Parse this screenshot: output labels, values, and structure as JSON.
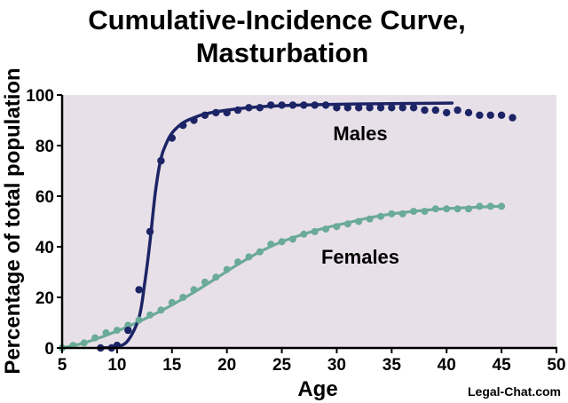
{
  "chart_data": {
    "type": "scatter",
    "title_lines": [
      "Cumulative-Incidence Curve,",
      "Masturbation"
    ],
    "xlabel": "Age",
    "ylabel": "Percentage of total population",
    "xlim": [
      5,
      50
    ],
    "ylim": [
      0,
      100
    ],
    "x_ticks": [
      5,
      10,
      15,
      20,
      25,
      30,
      35,
      40,
      45,
      50
    ],
    "y_ticks": [
      0,
      20,
      40,
      60,
      80,
      100
    ],
    "grid": false,
    "plot_background": "#e8e0e8",
    "series": [
      {
        "name": "Males",
        "color": "#1c2466",
        "points": [
          [
            8.5,
            0
          ],
          [
            9.5,
            0
          ],
          [
            10,
            1
          ],
          [
            11,
            7
          ],
          [
            12,
            23
          ],
          [
            13,
            46
          ],
          [
            14,
            74
          ],
          [
            15,
            83
          ],
          [
            16,
            88
          ],
          [
            17,
            90
          ],
          [
            18,
            92
          ],
          [
            19,
            93
          ],
          [
            20,
            93
          ],
          [
            21,
            94
          ],
          [
            22,
            95
          ],
          [
            23,
            95
          ],
          [
            24,
            96
          ],
          [
            25,
            96
          ],
          [
            26,
            96
          ],
          [
            27,
            96
          ],
          [
            28,
            96
          ],
          [
            29,
            96
          ],
          [
            30,
            95
          ],
          [
            31,
            95
          ],
          [
            32,
            95
          ],
          [
            33,
            95
          ],
          [
            34,
            95
          ],
          [
            35,
            95
          ],
          [
            36,
            95
          ],
          [
            37,
            95
          ],
          [
            38,
            94
          ],
          [
            39,
            94
          ],
          [
            40,
            93
          ],
          [
            41,
            94
          ],
          [
            42,
            93
          ],
          [
            43,
            92
          ],
          [
            44,
            92
          ],
          [
            45,
            92
          ],
          [
            46,
            91
          ]
        ],
        "fit": [
          [
            8.5,
            0
          ],
          [
            10,
            0.5
          ],
          [
            11,
            3
          ],
          [
            12,
            12
          ],
          [
            12.5,
            25
          ],
          [
            13,
            42
          ],
          [
            13.5,
            62
          ],
          [
            14,
            75
          ],
          [
            14.5,
            81
          ],
          [
            15,
            85
          ],
          [
            16,
            89
          ],
          [
            17,
            91
          ],
          [
            18,
            92.5
          ],
          [
            20,
            94
          ],
          [
            22,
            95
          ],
          [
            25,
            95.8
          ],
          [
            30,
            96.3
          ],
          [
            35,
            96.6
          ],
          [
            40.5,
            96.8
          ]
        ]
      },
      {
        "name": "Females",
        "color": "#6aaa98",
        "points": [
          [
            5,
            0
          ],
          [
            6,
            1
          ],
          [
            7,
            2
          ],
          [
            8,
            4
          ],
          [
            9,
            6
          ],
          [
            10,
            7
          ],
          [
            11,
            9
          ],
          [
            12,
            11
          ],
          [
            13,
            13
          ],
          [
            14,
            15
          ],
          [
            15,
            18
          ],
          [
            16,
            20
          ],
          [
            17,
            23
          ],
          [
            18,
            26
          ],
          [
            19,
            28
          ],
          [
            20,
            31
          ],
          [
            21,
            34
          ],
          [
            22,
            36
          ],
          [
            23,
            38
          ],
          [
            24,
            41
          ],
          [
            25,
            42
          ],
          [
            26,
            43
          ],
          [
            27,
            45
          ],
          [
            28,
            46
          ],
          [
            29,
            47
          ],
          [
            30,
            48
          ],
          [
            31,
            49
          ],
          [
            32,
            50
          ],
          [
            33,
            51
          ],
          [
            34,
            52
          ],
          [
            35,
            53
          ],
          [
            36,
            53
          ],
          [
            37,
            54
          ],
          [
            38,
            54
          ],
          [
            39,
            55
          ],
          [
            40,
            55
          ],
          [
            41,
            55
          ],
          [
            42,
            55
          ],
          [
            43,
            56
          ],
          [
            44,
            56
          ],
          [
            45,
            56
          ]
        ],
        "fit": [
          [
            5,
            0
          ],
          [
            7,
            2
          ],
          [
            9,
            5
          ],
          [
            11,
            8.5
          ],
          [
            13,
            12.5
          ],
          [
            15,
            17
          ],
          [
            17,
            22
          ],
          [
            19,
            27.5
          ],
          [
            21,
            33
          ],
          [
            23,
            38
          ],
          [
            25,
            42
          ],
          [
            27,
            45
          ],
          [
            29,
            47.5
          ],
          [
            31,
            49.5
          ],
          [
            33,
            51.5
          ],
          [
            35,
            53
          ],
          [
            37,
            54
          ],
          [
            39,
            54.8
          ],
          [
            41,
            55.3
          ],
          [
            43,
            55.7
          ],
          [
            45,
            56
          ]
        ]
      }
    ],
    "annotations": [
      "Males",
      "Females"
    ]
  },
  "watermark": "Legal-Chat.com"
}
